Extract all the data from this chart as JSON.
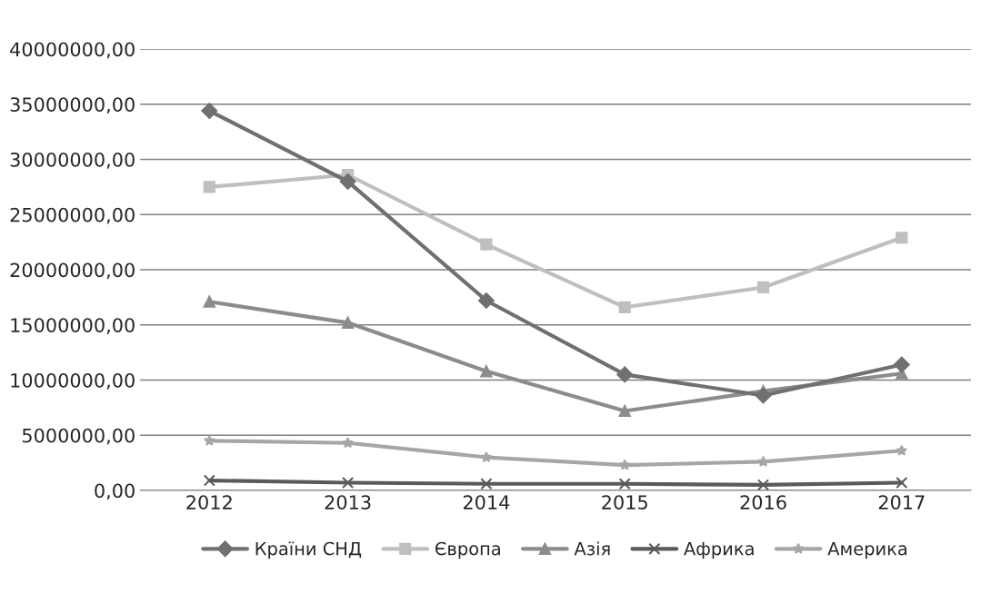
{
  "chart_data": {
    "type": "line",
    "categories": [
      "2012",
      "2013",
      "2014",
      "2015",
      "2016",
      "2017"
    ],
    "series": [
      {
        "name": "Країни СНД",
        "color": "#707070",
        "marker": "diamond",
        "values": [
          34400000,
          28000000,
          17200000,
          10500000,
          8600000,
          11400000
        ]
      },
      {
        "name": "Європа",
        "color": "#bfbfbf",
        "marker": "square",
        "values": [
          27500000,
          28600000,
          22300000,
          16600000,
          18400000,
          22900000
        ]
      },
      {
        "name": "Азія",
        "color": "#8c8c8c",
        "marker": "triangle",
        "values": [
          17100000,
          15200000,
          10800000,
          7200000,
          9000000,
          10600000
        ]
      },
      {
        "name": "Африка",
        "color": "#5a5a5a",
        "marker": "cross",
        "values": [
          900000,
          700000,
          600000,
          600000,
          500000,
          700000
        ]
      },
      {
        "name": "Америка",
        "color": "#a6a6a6",
        "marker": "star",
        "values": [
          4500000,
          4300000,
          3000000,
          2300000,
          2600000,
          3600000
        ]
      }
    ],
    "ylim": [
      0,
      40000000
    ],
    "yticks": [
      {
        "value": 0,
        "label": "0,00"
      },
      {
        "value": 5000000,
        "label": "5000000,00"
      },
      {
        "value": 10000000,
        "label": "10000000,00"
      },
      {
        "value": 15000000,
        "label": "15000000,00"
      },
      {
        "value": 20000000,
        "label": "20000000,00"
      },
      {
        "value": 25000000,
        "label": "25000000,00"
      },
      {
        "value": 30000000,
        "label": "30000000,00"
      },
      {
        "value": 35000000,
        "label": "35000000,00"
      },
      {
        "value": 40000000,
        "label": "40000000,00"
      }
    ],
    "grid": "y",
    "legend": "bottom",
    "line_style": "solid"
  }
}
